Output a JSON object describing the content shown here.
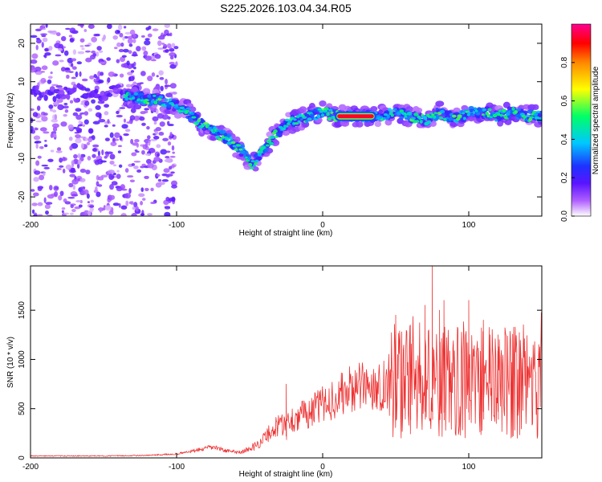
{
  "title": "S225.2026.103.04.34.R05",
  "colors": {
    "signal": "#ee3333",
    "axes": "#000000",
    "background": "#ffffff"
  },
  "chart_data": [
    {
      "type": "heatmap",
      "xlabel": "Height of straight line (km)",
      "ylabel": "Frequency (Hz)",
      "xlim": [
        -200,
        150
      ],
      "ylim": [
        -25,
        25
      ],
      "xticks": [
        "-200",
        "-100",
        "0",
        "100"
      ],
      "yticks": [
        "-20",
        "-10",
        "0",
        "10",
        "20"
      ],
      "ridge": [
        {
          "x": -130,
          "y": 6
        },
        {
          "x": -110,
          "y": 5
        },
        {
          "x": -95,
          "y": 3
        },
        {
          "x": -80,
          "y": -2
        },
        {
          "x": -65,
          "y": -5
        },
        {
          "x": -55,
          "y": -8
        },
        {
          "x": -48,
          "y": -12
        },
        {
          "x": -42,
          "y": -8
        },
        {
          "x": -35,
          "y": -5
        },
        {
          "x": -25,
          "y": -1
        },
        {
          "x": -10,
          "y": 1
        },
        {
          "x": 0,
          "y": 2
        },
        {
          "x": 10,
          "y": 1
        },
        {
          "x": 20,
          "y": 1
        },
        {
          "x": 30,
          "y": 1
        },
        {
          "x": 40,
          "y": 1
        },
        {
          "x": 50,
          "y": 2
        },
        {
          "x": 60,
          "y": 1
        },
        {
          "x": 70,
          "y": 0
        },
        {
          "x": 80,
          "y": 2
        },
        {
          "x": 90,
          "y": 0
        },
        {
          "x": 100,
          "y": 2
        },
        {
          "x": 110,
          "y": 2
        },
        {
          "x": 120,
          "y": 1
        },
        {
          "x": 130,
          "y": 2
        },
        {
          "x": 140,
          "y": 1
        },
        {
          "x": 150,
          "y": 1
        }
      ],
      "strong_segment": {
        "x_start": 10,
        "x_end": 35,
        "y": 1
      },
      "scatter_region": {
        "x_start": -200,
        "x_end": -105,
        "y_range": [
          -25,
          25
        ]
      },
      "colorbar": {
        "label": "Normalized spectral amplitude",
        "range": [
          0,
          1
        ],
        "ticks": [
          "0.0",
          "0.2",
          "0.4",
          "0.6",
          "0.8"
        ],
        "colormap": [
          "#ffffff",
          "#b060ff",
          "#5a14ff",
          "#1e32ff",
          "#00c8ff",
          "#00ff66",
          "#ffff00",
          "#ff8800",
          "#ff0000",
          "#ff0090"
        ]
      }
    },
    {
      "type": "line",
      "name": "SNR",
      "xlabel": "Height of straight line (km)",
      "ylabel": "SNR (10 * v/v)",
      "xlim": [
        -200,
        150
      ],
      "ylim": [
        0,
        1950
      ],
      "xticks": [
        "-200",
        "-100",
        "0",
        "100"
      ],
      "yticks": [
        "0",
        "500",
        "1000",
        "1500"
      ],
      "envelope": [
        {
          "x": -200,
          "y": 20
        },
        {
          "x": -150,
          "y": 20
        },
        {
          "x": -120,
          "y": 25
        },
        {
          "x": -100,
          "y": 40
        },
        {
          "x": -85,
          "y": 80
        },
        {
          "x": -75,
          "y": 110
        },
        {
          "x": -65,
          "y": 70
        },
        {
          "x": -55,
          "y": 60
        },
        {
          "x": -45,
          "y": 130
        },
        {
          "x": -40,
          "y": 200
        },
        {
          "x": -35,
          "y": 280
        },
        {
          "x": -30,
          "y": 330
        },
        {
          "x": -20,
          "y": 400
        },
        {
          "x": -10,
          "y": 460
        },
        {
          "x": 0,
          "y": 540
        },
        {
          "x": 10,
          "y": 620
        },
        {
          "x": 20,
          "y": 700
        },
        {
          "x": 30,
          "y": 730
        },
        {
          "x": 40,
          "y": 740
        },
        {
          "x": 50,
          "y": 760
        },
        {
          "x": 70,
          "y": 780
        },
        {
          "x": 90,
          "y": 760
        },
        {
          "x": 110,
          "y": 780
        },
        {
          "x": 130,
          "y": 780
        },
        {
          "x": 150,
          "y": 780
        }
      ],
      "peaks": [
        {
          "x": -25,
          "y": 750
        },
        {
          "x": 50,
          "y": 1450
        },
        {
          "x": 60,
          "y": 1350
        },
        {
          "x": 70,
          "y": 1550
        },
        {
          "x": 75,
          "y": 1950
        },
        {
          "x": 80,
          "y": 1500
        },
        {
          "x": 83,
          "y": 1600
        },
        {
          "x": 100,
          "y": 1600
        },
        {
          "x": 110,
          "y": 1400
        },
        {
          "x": 120,
          "y": 1250
        }
      ]
    }
  ]
}
